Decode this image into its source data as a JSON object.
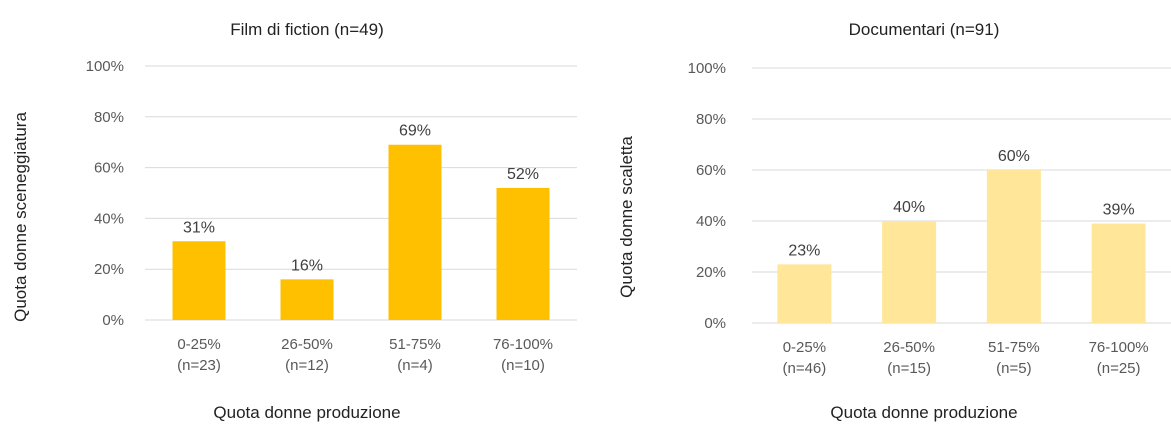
{
  "chart_data": [
    {
      "type": "bar",
      "title": "Film di fiction (n=49)",
      "xlabel": "Quota donne produzione",
      "ylabel": "Quota donne sceneggiatura",
      "categories": [
        [
          "0-25%",
          "(n=23)"
        ],
        [
          "26-50%",
          "(n=12)"
        ],
        [
          "51-75%",
          "(n=4)"
        ],
        [
          "76-100%",
          "(n=10)"
        ]
      ],
      "values": [
        31,
        16,
        69,
        52
      ],
      "data_labels": [
        "31%",
        "16%",
        "69%",
        "52%"
      ],
      "yticks": [
        "0%",
        "20%",
        "40%",
        "60%",
        "80%",
        "100%"
      ],
      "ylim": [
        0,
        100
      ],
      "grid": true,
      "color": "#FFC000"
    },
    {
      "type": "bar",
      "title": "Documentari (n=91)",
      "xlabel": "Quota donne produzione",
      "ylabel": "Quota donne scaletta",
      "categories": [
        [
          "0-25%",
          "(n=46)"
        ],
        [
          "26-50%",
          "(n=15)"
        ],
        [
          "51-75%",
          "(n=5)"
        ],
        [
          "76-100%",
          "(n=25)"
        ]
      ],
      "values": [
        23,
        40,
        60,
        39
      ],
      "data_labels": [
        "23%",
        "40%",
        "60%",
        "39%"
      ],
      "yticks": [
        "0%",
        "20%",
        "40%",
        "60%",
        "80%",
        "100%"
      ],
      "ylim": [
        0,
        100
      ],
      "grid": true,
      "color": "#FFE699"
    }
  ]
}
